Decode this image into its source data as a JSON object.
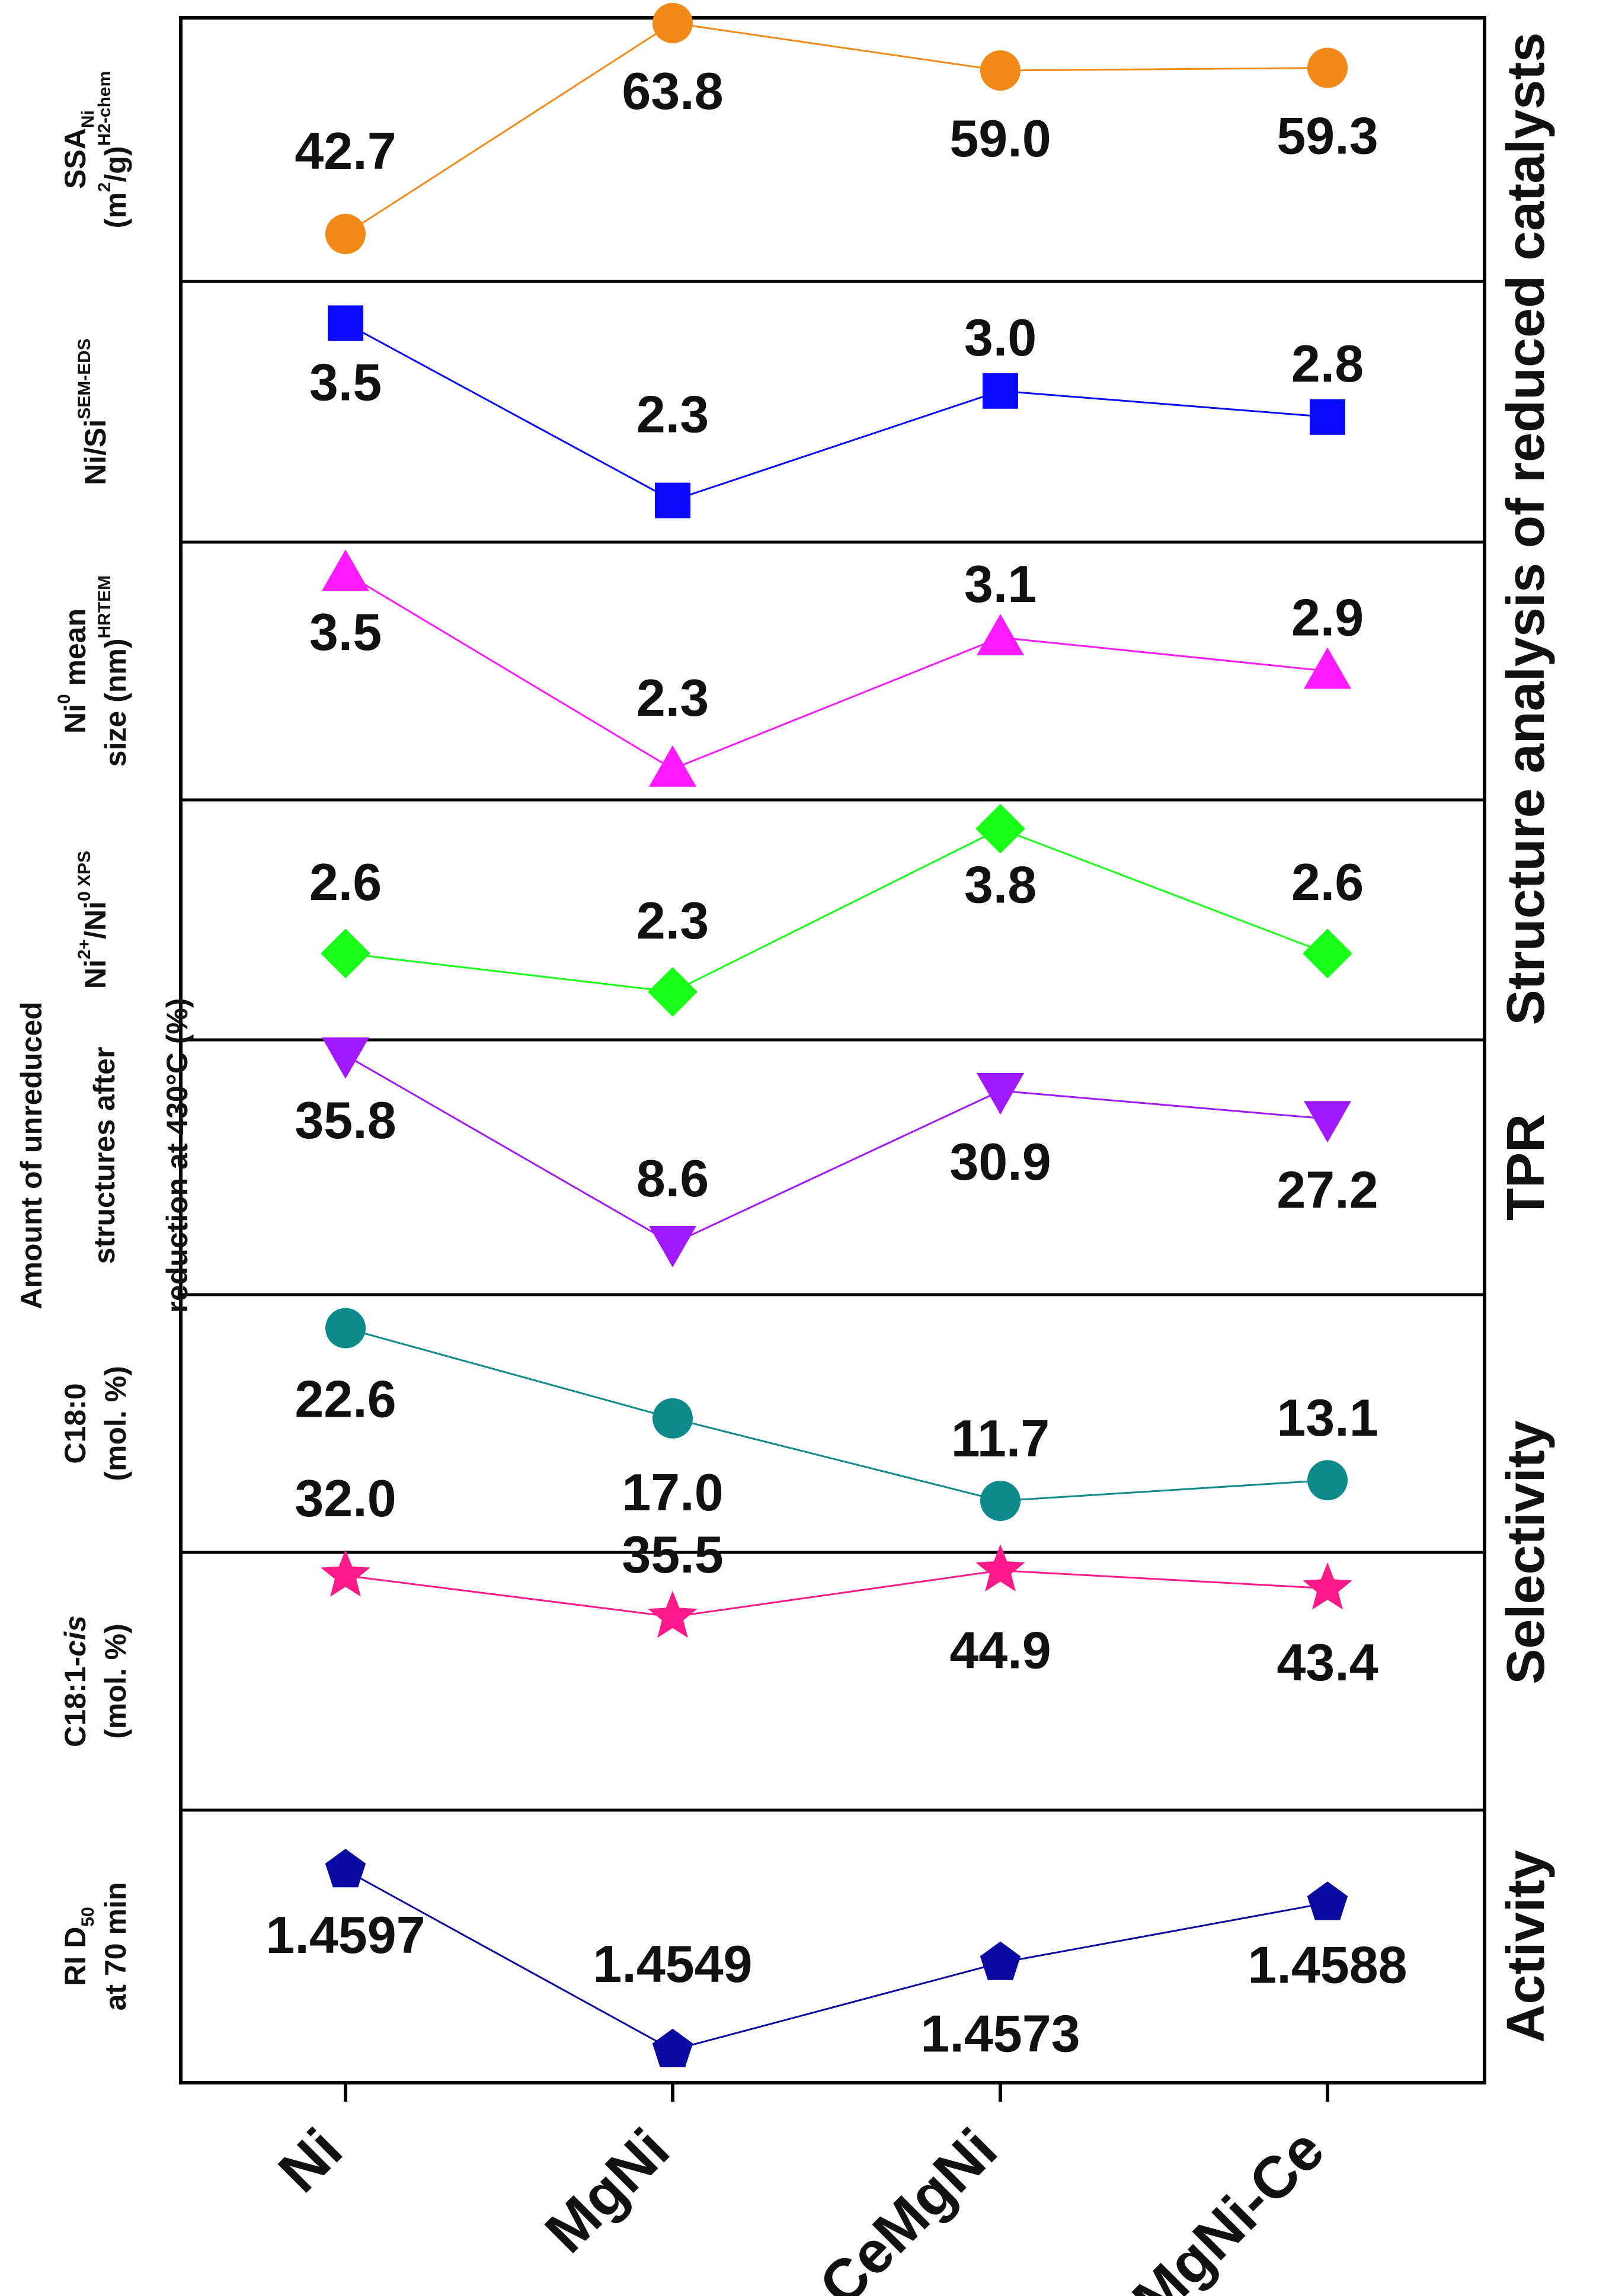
{
  "chart_data": {
    "type": "line",
    "categories": [
      "Ni",
      "MgNi",
      "CeMgNi",
      "MgNi-Ce"
    ],
    "panels": [
      {
        "id": "ssa",
        "ylabel_lines": [
          "SSA|Ni|",
          "(m^2^/g)^H2-chem^"
        ],
        "marker": "circle",
        "color": "#f28a1a",
        "values": [
          42.7,
          63.8,
          59.0,
          59.3
        ],
        "labels": [
          "42.7",
          "63.8",
          "59.0",
          "59.3"
        ]
      },
      {
        "id": "nisi",
        "ylabel_lines": [
          "Ni/Si^SEM-EDS^"
        ],
        "marker": "square",
        "color": "#0a0aff",
        "values": [
          3.5,
          2.3,
          3.0,
          2.8
        ],
        "labels": [
          "3.5",
          "2.3",
          "3.0",
          "2.8"
        ]
      },
      {
        "id": "size",
        "ylabel_lines": [
          "Ni^0^ mean",
          "size (nm)^HRTEM^"
        ],
        "marker": "triangle-up",
        "color": "#ff1aff",
        "values": [
          3.5,
          2.3,
          3.1,
          2.9
        ],
        "labels": [
          "3.5",
          "2.3",
          "3.1",
          "2.9"
        ]
      },
      {
        "id": "xps",
        "ylabel_lines": [
          "Ni^2+^/Ni^0 XPS^"
        ],
        "marker": "diamond",
        "color": "#1aff1a",
        "values": [
          2.6,
          2.3,
          3.8,
          2.6
        ],
        "labels": [
          "2.6",
          "2.3",
          "3.8",
          "2.6"
        ]
      },
      {
        "id": "tpr",
        "ylabel_lines": [
          "Amount of unreduced",
          "structures after",
          "reduction at 430°C (%)"
        ],
        "marker": "triangle-down",
        "color": "#a01aff",
        "values": [
          35.8,
          8.6,
          30.9,
          27.2
        ],
        "labels": [
          "35.8",
          "8.6",
          "30.9",
          "27.2"
        ]
      },
      {
        "id": "c180",
        "ylabel_lines": [
          "C18:0",
          "(mol. %)"
        ],
        "marker": "circle",
        "color": "#0f8a8a",
        "values": [
          22.6,
          17.0,
          11.7,
          13.1
        ],
        "labels": [
          "22.6",
          "17.0",
          "11.7",
          "13.1"
        ]
      },
      {
        "id": "c181",
        "ylabel_lines": [
          "C18:1-|cis|",
          "(mol. %)"
        ],
        "marker": "star",
        "color": "#ff1a8a",
        "values": [
          32.0,
          35.5,
          44.9,
          43.4
        ],
        "labels": [
          "32.0",
          "35.5",
          "44.9",
          "43.4"
        ]
      },
      {
        "id": "ri",
        "ylabel_lines": [
          "RI D|50|",
          "at 70 min"
        ],
        "marker": "pentagon",
        "color": "#0a0aa0",
        "values": [
          1.4597,
          1.4549,
          1.4573,
          1.4588
        ],
        "labels": [
          "1.4597",
          "1.4549",
          "1.4573",
          "1.4588"
        ]
      }
    ],
    "groups": [
      {
        "label": "Structure analysis of reduced catalysts",
        "panels": [
          0,
          3
        ]
      },
      {
        "label": "TPR",
        "panels": [
          4,
          4
        ]
      },
      {
        "label": "Selectivity",
        "panels": [
          5,
          6
        ]
      },
      {
        "label": "Activity",
        "panels": [
          7,
          7
        ]
      }
    ]
  }
}
